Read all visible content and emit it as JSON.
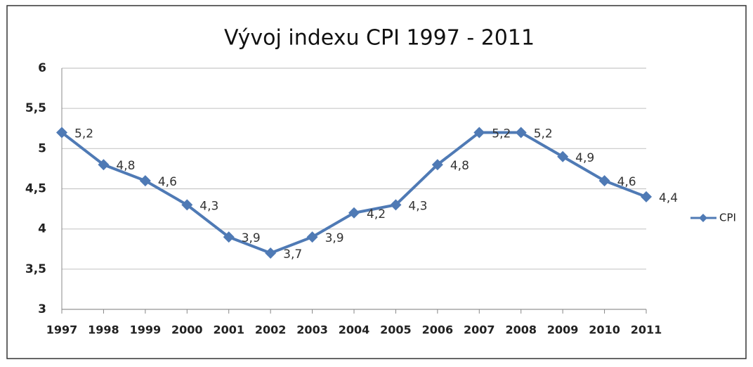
{
  "chart_data": {
    "type": "line",
    "title": "Vývoj indexu CPI 1997 - 2011",
    "categories": [
      "1997",
      "1998",
      "1999",
      "2000",
      "2001",
      "2002",
      "2003",
      "2004",
      "2005",
      "2006",
      "2007",
      "2008",
      "2009",
      "2010",
      "2011"
    ],
    "series": [
      {
        "name": "CPI",
        "color": "#4f7ab5",
        "values": [
          5.2,
          4.8,
          4.6,
          4.3,
          3.9,
          3.7,
          3.9,
          4.2,
          4.3,
          4.8,
          5.2,
          5.2,
          4.9,
          4.6,
          4.4
        ],
        "value_labels": [
          "5,2",
          "4,8",
          "4,6",
          "4,3",
          "3,9",
          "3,7",
          "3,9",
          "4,2",
          "4,3",
          "4,8",
          "5,2",
          "5,2",
          "4,9",
          "4,6",
          "4,4"
        ]
      }
    ],
    "ylim": [
      3,
      6
    ],
    "yticks": [
      3,
      {
        "value": 3.5,
        "label": "3,5"
      },
      4,
      {
        "value": 4.5,
        "label": "4,5"
      },
      5,
      {
        "value": 5.5,
        "label": "5,5"
      },
      6
    ],
    "grid": true,
    "legend": "right"
  }
}
